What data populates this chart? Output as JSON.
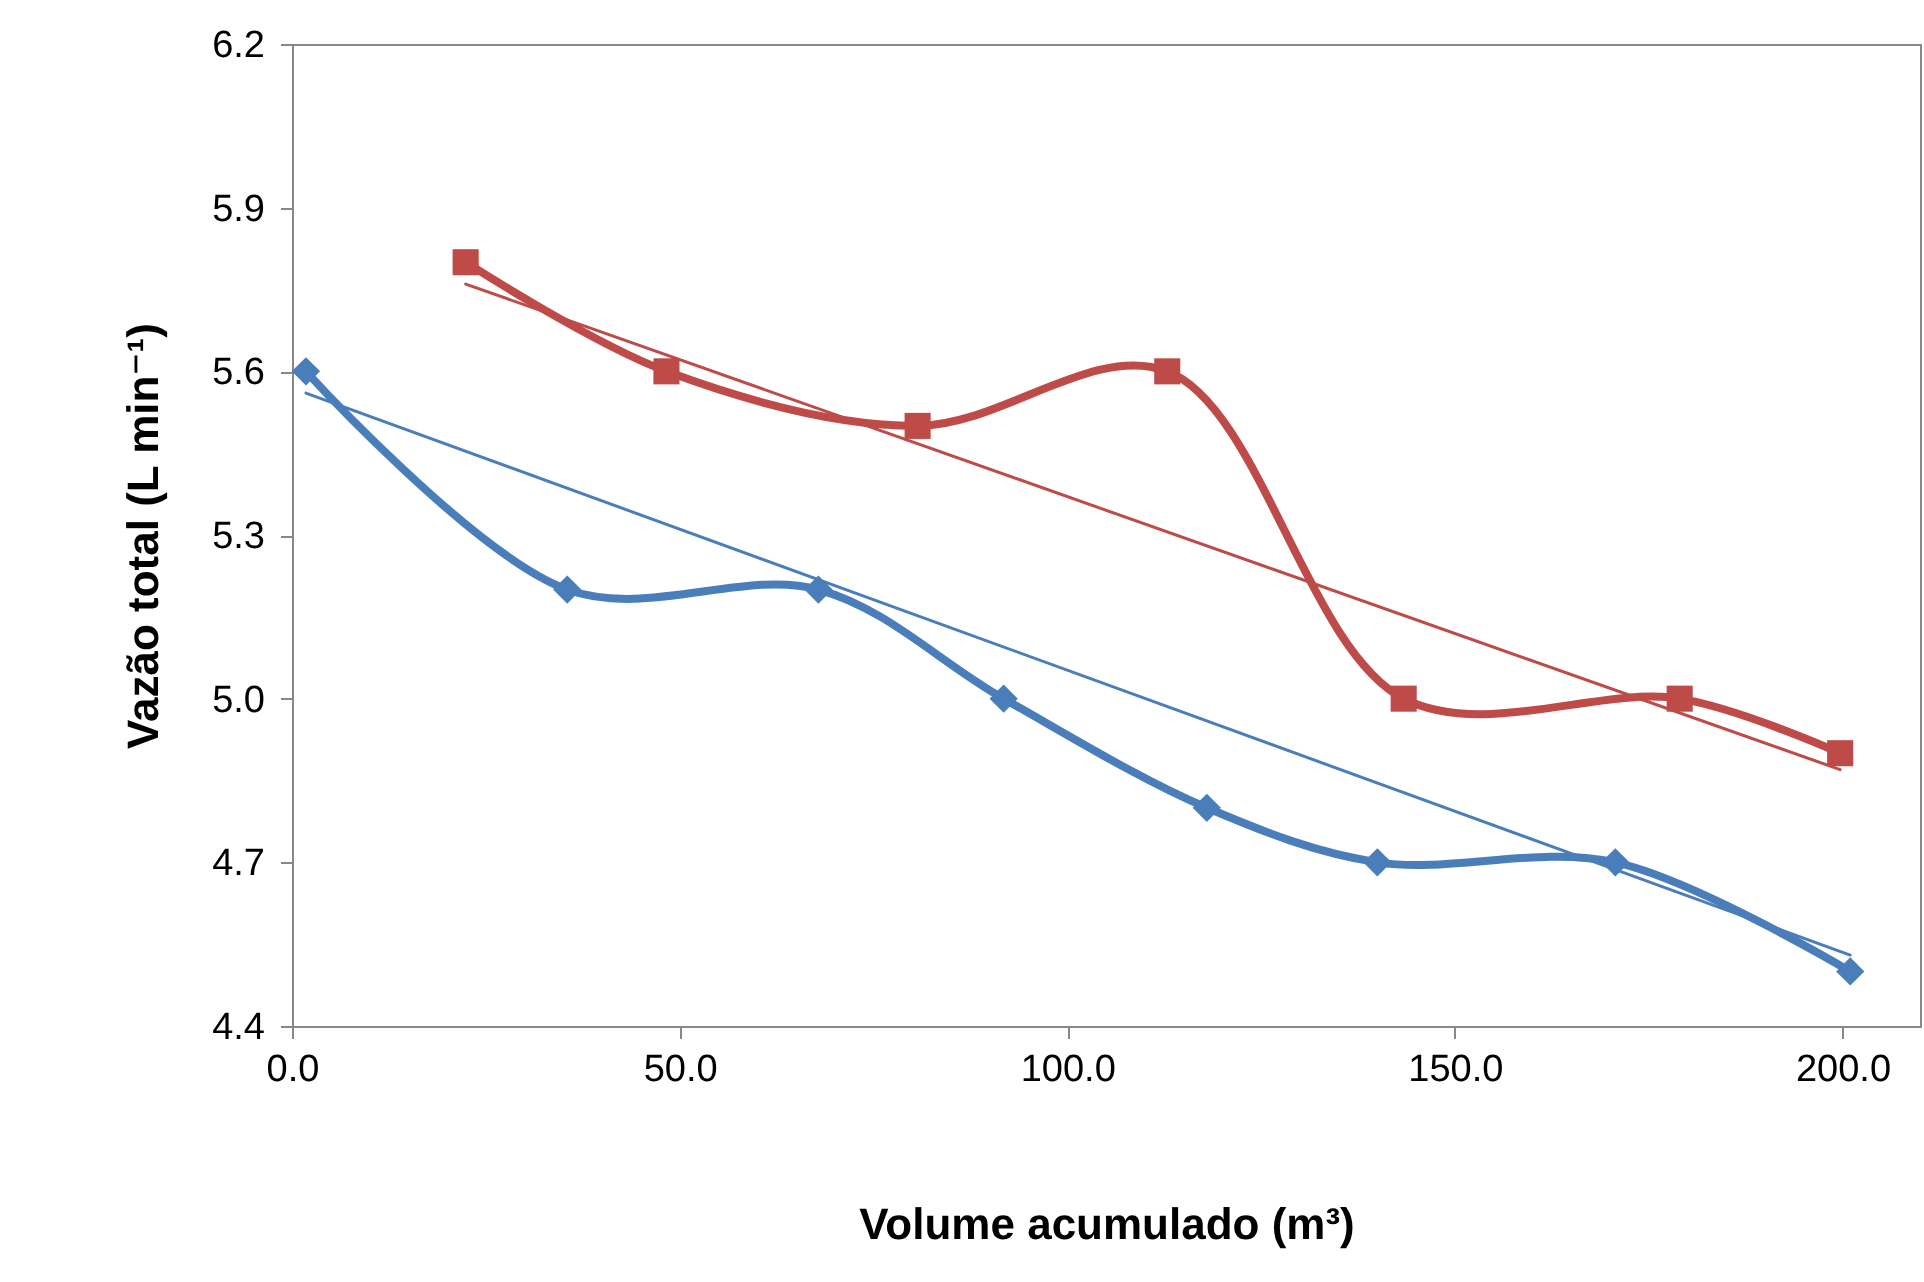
{
  "chart_data": {
    "type": "line",
    "xlabel": "Volume acumulado (m³)",
    "ylabel": "Vazão total (L min⁻¹)",
    "xlim": [
      0,
      210
    ],
    "xticks": [
      {
        "value": 0,
        "label": "0.0"
      },
      {
        "value": 50,
        "label": "50.0"
      },
      {
        "value": 100,
        "label": "100.0"
      },
      {
        "value": 150,
        "label": "150.0"
      },
      {
        "value": 200,
        "label": "200.0"
      }
    ],
    "ylim": [
      4.4,
      6.2
    ],
    "yticks": [
      4.4,
      4.7,
      {
        "value": 5.0,
        "label": "5.0"
      },
      5.3,
      5.6,
      5.9,
      6.2
    ],
    "grid": false,
    "series": [
      {
        "color": "#4a7ebb",
        "marker": "diamond",
        "x": [
          1.8,
          35.5,
          67.9,
          91.8,
          118,
          140,
          170.7,
          201
        ],
        "values": [
          5.6,
          5.2,
          5.2,
          5.0,
          4.8,
          4.7,
          4.7,
          4.5
        ]
      },
      {
        "color": "#be4b48",
        "marker": "square",
        "x": [
          22.4,
          48.3,
          80.7,
          112.9,
          143.4,
          179,
          199.7
        ],
        "values": [
          5.8,
          5.6,
          5.5,
          5.6,
          5.0,
          5.0,
          4.9
        ]
      },
      {
        "color": "#4a7ebb",
        "marker": "none",
        "x": [
          1.8,
          201
        ],
        "values": [
          5.56,
          4.53
        ]
      },
      {
        "color": "#be4b48",
        "marker": "none",
        "x": [
          22.4,
          199.7
        ],
        "values": [
          5.76,
          4.87
        ]
      }
    ]
  }
}
